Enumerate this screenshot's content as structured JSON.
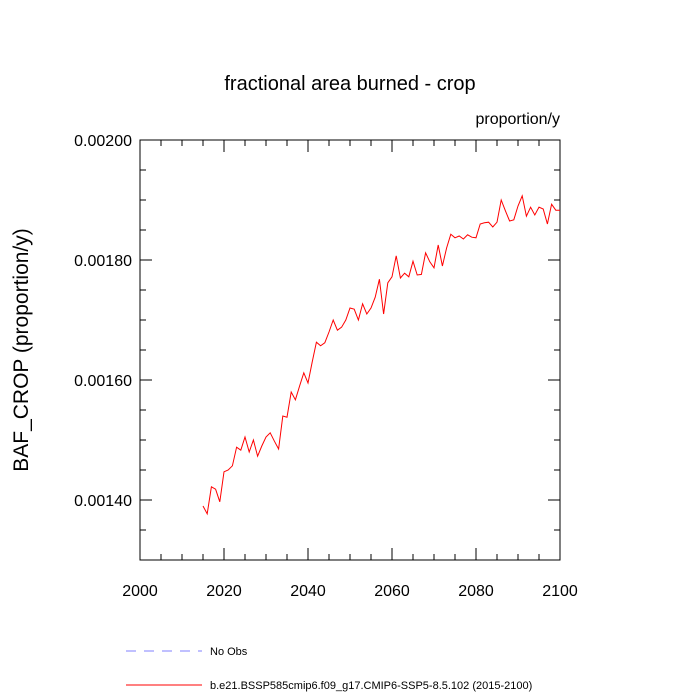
{
  "chart_data": {
    "type": "line",
    "title": "fractional area burned - crop",
    "units_label": "proportion/y",
    "ylabel": "BAF_CROP  (proportion/y)",
    "xlabel": "",
    "xlim": [
      2000,
      2100
    ],
    "ylim": [
      0.0013,
      0.002
    ],
    "x_ticks": [
      2000,
      2020,
      2040,
      2060,
      2080,
      2100
    ],
    "x_tick_labels": [
      "2000",
      "2020",
      "2040",
      "2060",
      "2080",
      "2100"
    ],
    "y_ticks": [
      0.0014,
      0.0016,
      0.0018,
      0.002
    ],
    "y_tick_labels": [
      "0.00140",
      "0.00160",
      "0.00180",
      "0.00200"
    ],
    "y_minor_step": 5e-05,
    "x_minor_step": 5,
    "series": [
      {
        "name": "b.e21.BSSP585cmip6.f09_g17.CMIP6-SSP5-8.5.102 (2015-2100)",
        "color": "#ff0000",
        "dash": "solid",
        "x": [
          2015,
          2016,
          2017,
          2018,
          2019,
          2020,
          2021,
          2022,
          2023,
          2024,
          2025,
          2026,
          2027,
          2028,
          2029,
          2030,
          2031,
          2032,
          2033,
          2034,
          2035,
          2036,
          2037,
          2038,
          2039,
          2040,
          2041,
          2042,
          2043,
          2044,
          2045,
          2046,
          2047,
          2048,
          2049,
          2050,
          2051,
          2052,
          2053,
          2054,
          2055,
          2056,
          2057,
          2058,
          2059,
          2060,
          2061,
          2062,
          2063,
          2064,
          2065,
          2066,
          2067,
          2068,
          2069,
          2070,
          2071,
          2072,
          2073,
          2074,
          2075,
          2076,
          2077,
          2078,
          2079,
          2080,
          2081,
          2082,
          2083,
          2084,
          2085,
          2086,
          2087,
          2088,
          2089,
          2090,
          2091,
          2092,
          2093,
          2094,
          2095,
          2096,
          2097,
          2098,
          2099,
          2100
        ],
        "values": [
          0.00139,
          0.001377,
          0.001422,
          0.001418,
          0.001397,
          0.001447,
          0.00145,
          0.001457,
          0.001488,
          0.001483,
          0.001505,
          0.00148,
          0.0015,
          0.001473,
          0.00149,
          0.001505,
          0.001512,
          0.001498,
          0.001485,
          0.00154,
          0.001538,
          0.00158,
          0.001567,
          0.00159,
          0.001612,
          0.001595,
          0.00163,
          0.001663,
          0.001657,
          0.001662,
          0.00168,
          0.0017,
          0.001683,
          0.001688,
          0.0017,
          0.00172,
          0.001718,
          0.0017,
          0.001727,
          0.00171,
          0.00172,
          0.001738,
          0.001768,
          0.00171,
          0.001762,
          0.001772,
          0.001807,
          0.00177,
          0.001778,
          0.001772,
          0.001798,
          0.001775,
          0.001776,
          0.001812,
          0.001797,
          0.001787,
          0.001825,
          0.00179,
          0.00182,
          0.001843,
          0.001837,
          0.00184,
          0.001835,
          0.001842,
          0.001838,
          0.001837,
          0.00186,
          0.001862,
          0.001863,
          0.001855,
          0.001863,
          0.0019,
          0.001882,
          0.001865,
          0.001867,
          0.00189,
          0.001907,
          0.001873,
          0.001888,
          0.001875,
          0.001888,
          0.001885,
          0.00186,
          0.001893,
          0.001883,
          0.001883
        ]
      }
    ],
    "legend": [
      {
        "label": "No Obs",
        "color": "#8080ff",
        "dash": "dashed"
      },
      {
        "label": "b.e21.BSSP585cmip6.f09_g17.CMIP6-SSP5-8.5.102 (2015-2100)",
        "color": "#ff0000",
        "dash": "solid"
      }
    ],
    "legend_position": "bottom-left",
    "grid": false
  }
}
